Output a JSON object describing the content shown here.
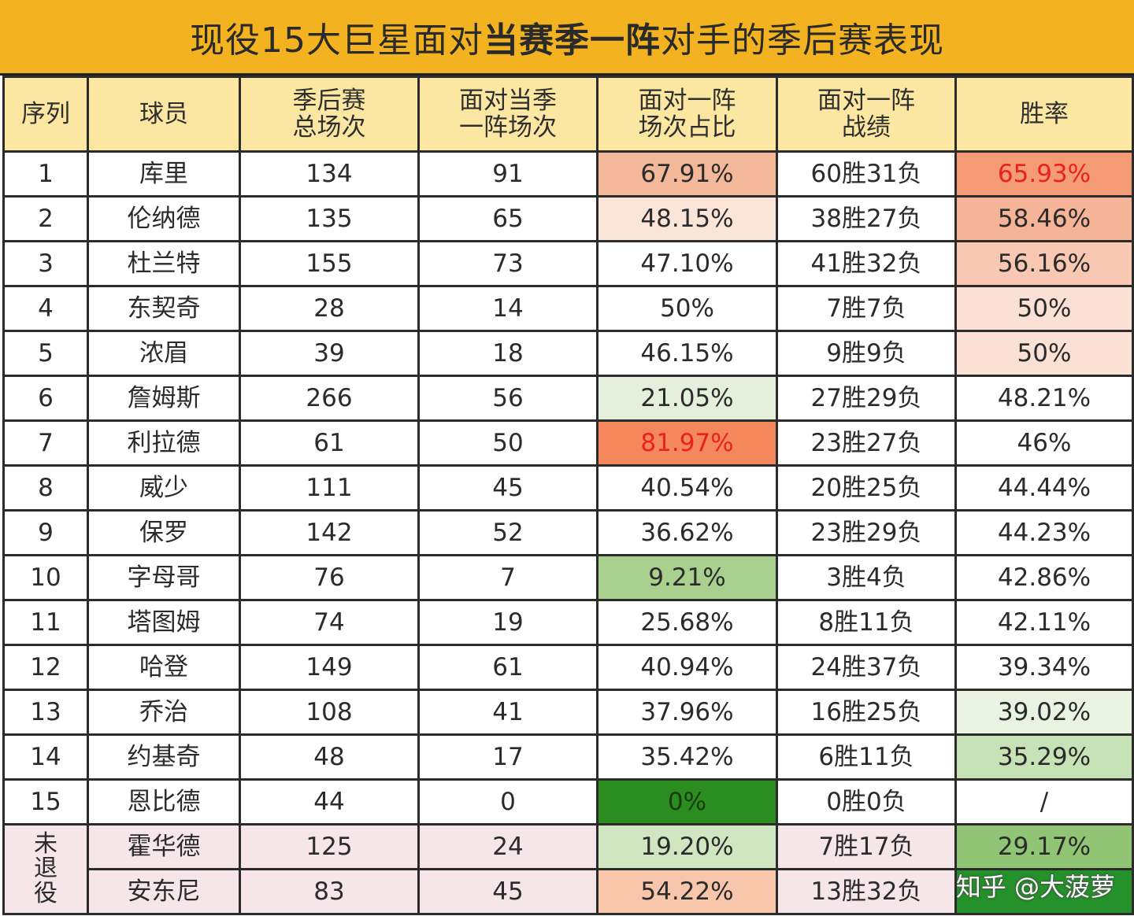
{
  "title": {
    "pre": "现役15大巨星面对",
    "bold": "当赛季一阵",
    "post": "对手的季后赛表现"
  },
  "headers": {
    "index": "序列",
    "player": "球员",
    "total_games_1": "季后赛",
    "total_games_2": "总场次",
    "vs_games_1": "面对当季",
    "vs_games_2": "一阵场次",
    "ratio_1": "面对一阵",
    "ratio_2": "场次占比",
    "record_1": "面对一阵",
    "record_2": "战绩",
    "winrate": "胜率"
  },
  "rows": [
    {
      "index": "1",
      "player": "库里",
      "total": "134",
      "vs": "91",
      "ratio": "67.91%",
      "record": "60胜31负",
      "winrate": "65.93%"
    },
    {
      "index": "2",
      "player": "伦纳德",
      "total": "135",
      "vs": "65",
      "ratio": "48.15%",
      "record": "38胜27负",
      "winrate": "58.46%"
    },
    {
      "index": "3",
      "player": "杜兰特",
      "total": "155",
      "vs": "73",
      "ratio": "47.10%",
      "record": "41胜32负",
      "winrate": "56.16%"
    },
    {
      "index": "4",
      "player": "东契奇",
      "total": "28",
      "vs": "14",
      "ratio": "50%",
      "record": "7胜7负",
      "winrate": "50%"
    },
    {
      "index": "5",
      "player": "浓眉",
      "total": "39",
      "vs": "18",
      "ratio": "46.15%",
      "record": "9胜9负",
      "winrate": "50%"
    },
    {
      "index": "6",
      "player": "詹姆斯",
      "total": "266",
      "vs": "56",
      "ratio": "21.05%",
      "record": "27胜29负",
      "winrate": "48.21%"
    },
    {
      "index": "7",
      "player": "利拉德",
      "total": "61",
      "vs": "50",
      "ratio": "81.97%",
      "record": "23胜27负",
      "winrate": "46%"
    },
    {
      "index": "8",
      "player": "威少",
      "total": "111",
      "vs": "45",
      "ratio": "40.54%",
      "record": "20胜25负",
      "winrate": "44.44%"
    },
    {
      "index": "9",
      "player": "保罗",
      "total": "142",
      "vs": "52",
      "ratio": "36.62%",
      "record": "23胜29负",
      "winrate": "44.23%"
    },
    {
      "index": "10",
      "player": "字母哥",
      "total": "76",
      "vs": "7",
      "ratio": "9.21%",
      "record": "3胜4负",
      "winrate": "42.86%"
    },
    {
      "index": "11",
      "player": "塔图姆",
      "total": "74",
      "vs": "19",
      "ratio": "25.68%",
      "record": "8胜11负",
      "winrate": "42.11%"
    },
    {
      "index": "12",
      "player": "哈登",
      "total": "149",
      "vs": "61",
      "ratio": "40.94%",
      "record": "24胜37负",
      "winrate": "39.34%"
    },
    {
      "index": "13",
      "player": "乔治",
      "total": "108",
      "vs": "41",
      "ratio": "37.96%",
      "record": "16胜25负",
      "winrate": "39.02%"
    },
    {
      "index": "14",
      "player": "约基奇",
      "total": "48",
      "vs": "17",
      "ratio": "35.42%",
      "record": "6胜11负",
      "winrate": "35.29%"
    },
    {
      "index": "15",
      "player": "恩比德",
      "total": "44",
      "vs": "0",
      "ratio": "0%",
      "record": "0胜0负",
      "winrate": "/"
    }
  ],
  "retired_label": "未退役",
  "retired_rows": [
    {
      "player": "霍华德",
      "total": "125",
      "vs": "24",
      "ratio": "19.20%",
      "record": "7胜17负",
      "winrate": "29.17%"
    },
    {
      "player": "安东尼",
      "total": "83",
      "vs": "45",
      "ratio": "54.22%",
      "record": "13胜32负",
      "winrate": ""
    }
  ],
  "colors": {
    "title_bg": "#f3b321",
    "header_bg": "#fbe7a2",
    "highlight_red_text": "#e8231e"
  },
  "watermark": "知乎 @大菠萝"
}
